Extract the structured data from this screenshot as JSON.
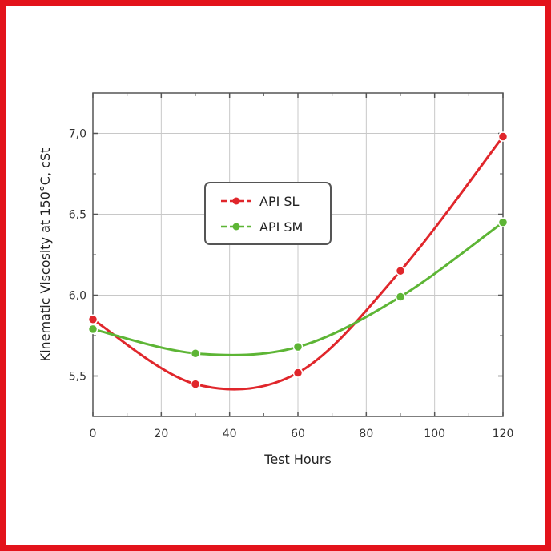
{
  "chart_data": {
    "type": "line",
    "xlabel": "Test Hours",
    "ylabel": "Kinematic Viscosity at 150°C, cSt",
    "xlim": [
      0,
      120
    ],
    "ylim": [
      5.25,
      7.25
    ],
    "xticks": [
      0,
      20,
      40,
      60,
      80,
      100,
      120
    ],
    "xtick_labels": [
      "0",
      "20",
      "40",
      "60",
      "80",
      "100",
      "120"
    ],
    "yticks": [
      5.5,
      6.0,
      6.5,
      7.0
    ],
    "ytick_labels": [
      "5,5",
      "6,0",
      "6,5",
      "7,0"
    ],
    "grid": true,
    "legend_position": "upper-center",
    "series": [
      {
        "name": "API SL",
        "color": "#e0262b",
        "x": [
          0,
          30,
          60,
          90,
          120
        ],
        "y": [
          5.85,
          5.45,
          5.52,
          6.15,
          6.98
        ]
      },
      {
        "name": "API SM",
        "color": "#5db535",
        "x": [
          0,
          30,
          60,
          90,
          120
        ],
        "y": [
          5.79,
          5.64,
          5.68,
          5.99,
          6.45
        ]
      }
    ]
  },
  "colors": {
    "frame": "#e3131b",
    "grid": "#c8c8c8",
    "axes": "#555555"
  }
}
